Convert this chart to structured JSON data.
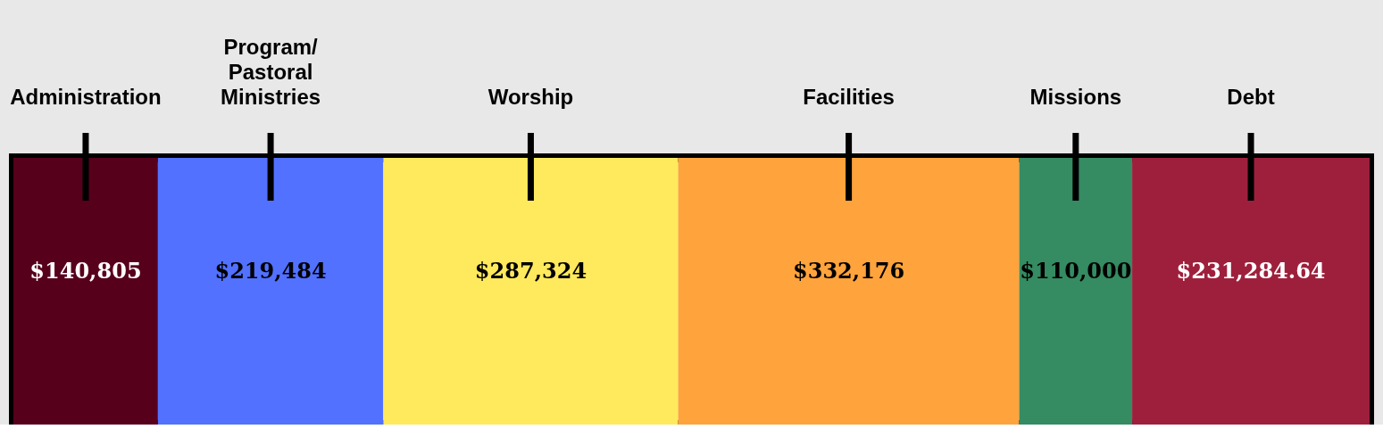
{
  "chart_data": {
    "type": "bar",
    "orientation": "horizontal",
    "stacked": true,
    "categories": [
      null
    ],
    "series": [
      {
        "name": "Administration",
        "color": "#57001c",
        "values": [
          140805
        ],
        "value_labels": [
          "$140,805"
        ]
      },
      {
        "name": "Program/ Pastoral Ministries",
        "color": "#5271ff",
        "values": [
          219484
        ],
        "value_labels": [
          "$219,484"
        ]
      },
      {
        "name": "Worship",
        "color": "#ffe95c",
        "values": [
          287324
        ],
        "value_labels": [
          "$287,324"
        ]
      },
      {
        "name": "Facilities",
        "color": "#ffa33c",
        "values": [
          332176
        ],
        "value_labels": [
          "$332,176"
        ]
      },
      {
        "name": "Missions",
        "color": "#358b62",
        "values": [
          110000
        ],
        "value_labels": [
          "$110,000"
        ]
      },
      {
        "name": "Debt",
        "color": "#9e1f3c",
        "values": [
          231284.64
        ],
        "value_labels": [
          "$231,284.64"
        ]
      }
    ]
  }
}
